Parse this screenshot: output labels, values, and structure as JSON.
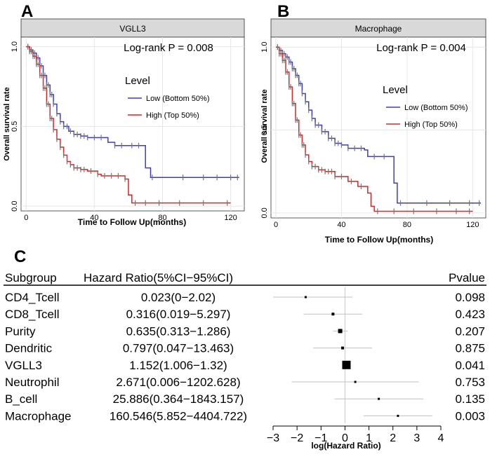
{
  "panels": {
    "a_letter": "A",
    "b_letter": "B",
    "c_letter": "C"
  },
  "chart_data": [
    {
      "type": "line",
      "panel": "A",
      "title": "VGLL3",
      "annotation": "Log-rank P = 0.008",
      "xlabel": "Time to Follow Up(months)",
      "ylabel": "Overall survival rate",
      "xlim": [
        -3,
        128
      ],
      "ylim": [
        -0.03,
        1.06
      ],
      "xticks": [
        "0",
        "40",
        "80",
        "120"
      ],
      "xtick_values": [
        0,
        40,
        80,
        120
      ],
      "yticks": [
        "0.0",
        "0.5",
        "1.0"
      ],
      "ytick_values": [
        0,
        0.5,
        1.0
      ],
      "grid": true,
      "legend": {
        "title": "Level",
        "position": "right",
        "entries": [
          "Low (Bottom 50%)",
          "High (Top 50%)"
        ]
      },
      "series": [
        {
          "name": "Low (Bottom 50%)",
          "color": "#3c3cc8",
          "steps": [
            [
              0,
              1.0
            ],
            [
              2,
              0.98
            ],
            [
              4,
              0.96
            ],
            [
              6,
              0.93
            ],
            [
              8,
              0.88
            ],
            [
              10,
              0.82
            ],
            [
              12,
              0.76
            ],
            [
              14,
              0.7
            ],
            [
              16,
              0.64
            ],
            [
              18,
              0.58
            ],
            [
              20,
              0.53
            ],
            [
              22,
              0.5
            ],
            [
              25,
              0.47
            ],
            [
              28,
              0.45
            ],
            [
              32,
              0.44
            ],
            [
              36,
              0.43
            ],
            [
              44,
              0.43
            ],
            [
              48,
              0.4
            ],
            [
              52,
              0.38
            ],
            [
              66,
              0.38
            ],
            [
              70,
              0.24
            ],
            [
              73,
              0.18
            ],
            [
              125,
              0.18
            ]
          ],
          "censor": [
            1,
            2,
            3,
            4,
            5,
            6,
            7,
            8,
            9,
            10,
            11,
            12,
            13,
            14,
            15,
            16,
            18,
            20,
            22,
            24,
            26,
            28,
            30,
            32,
            34,
            36,
            40,
            44,
            52,
            56,
            62,
            66,
            74,
            92,
            104,
            112,
            120,
            124
          ]
        },
        {
          "name": "High (Top 50%)",
          "color": "#d22828",
          "steps": [
            [
              0,
              1.0
            ],
            [
              2,
              0.97
            ],
            [
              4,
              0.94
            ],
            [
              6,
              0.89
            ],
            [
              8,
              0.82
            ],
            [
              10,
              0.74
            ],
            [
              12,
              0.64
            ],
            [
              14,
              0.55
            ],
            [
              16,
              0.48
            ],
            [
              18,
              0.42
            ],
            [
              20,
              0.37
            ],
            [
              22,
              0.32
            ],
            [
              24,
              0.28
            ],
            [
              26,
              0.26
            ],
            [
              28,
              0.24
            ],
            [
              32,
              0.23
            ],
            [
              36,
              0.22
            ],
            [
              42,
              0.2
            ],
            [
              44,
              0.19
            ],
            [
              58,
              0.17
            ],
            [
              60,
              0.07
            ],
            [
              62,
              0.02
            ],
            [
              120,
              0.02
            ]
          ],
          "censor": [
            1,
            2,
            3,
            4,
            5,
            6,
            7,
            8,
            9,
            10,
            11,
            12,
            13,
            14,
            15,
            16,
            18,
            20,
            22,
            24,
            26,
            28,
            30,
            32,
            34,
            38,
            42,
            46,
            50,
            54,
            58,
            64,
            70,
            78,
            90,
            104,
            118
          ]
        }
      ]
    },
    {
      "type": "line",
      "panel": "B",
      "title": "Macrophage",
      "annotation": "Log-rank P = 0.004",
      "xlabel": "Time to Follow Up(months)",
      "ylabel": "Overall survival rate",
      "xlim": [
        -3,
        128
      ],
      "ylim": [
        -0.03,
        1.06
      ],
      "xticks": [
        "0",
        "40",
        "80",
        "120"
      ],
      "xtick_values": [
        0,
        40,
        80,
        120
      ],
      "yticks": [
        "0.0",
        "0.5",
        "1.0"
      ],
      "ytick_values": [
        0,
        0.5,
        1.0
      ],
      "grid": true,
      "legend": {
        "title": "Level",
        "position": "right",
        "entries": [
          "Low (Bottom 50%)",
          "High (Top 50%)"
        ]
      },
      "series": [
        {
          "name": "Low (Bottom 50%)",
          "color": "#3c3cc8",
          "steps": [
            [
              0,
              1.0
            ],
            [
              2,
              0.98
            ],
            [
              4,
              0.96
            ],
            [
              6,
              0.94
            ],
            [
              8,
              0.91
            ],
            [
              10,
              0.87
            ],
            [
              12,
              0.83
            ],
            [
              14,
              0.78
            ],
            [
              16,
              0.72
            ],
            [
              18,
              0.67
            ],
            [
              20,
              0.62
            ],
            [
              22,
              0.57
            ],
            [
              24,
              0.53
            ],
            [
              28,
              0.49
            ],
            [
              32,
              0.45
            ],
            [
              36,
              0.42
            ],
            [
              40,
              0.41
            ],
            [
              44,
              0.39
            ],
            [
              54,
              0.38
            ],
            [
              56,
              0.34
            ],
            [
              70,
              0.34
            ],
            [
              72,
              0.18
            ],
            [
              74,
              0.06
            ],
            [
              125,
              0.06
            ]
          ],
          "censor": [
            1,
            2,
            3,
            4,
            5,
            6,
            7,
            8,
            9,
            10,
            11,
            12,
            13,
            14,
            15,
            16,
            18,
            20,
            22,
            24,
            26,
            28,
            30,
            32,
            34,
            36,
            38,
            40,
            44,
            48,
            52,
            60,
            66,
            76,
            92,
            106,
            118,
            124
          ]
        },
        {
          "name": "High (Top 50%)",
          "color": "#d22828",
          "steps": [
            [
              0,
              1.0
            ],
            [
              2,
              0.96
            ],
            [
              4,
              0.92
            ],
            [
              6,
              0.85
            ],
            [
              8,
              0.76
            ],
            [
              10,
              0.66
            ],
            [
              12,
              0.56
            ],
            [
              14,
              0.47
            ],
            [
              16,
              0.41
            ],
            [
              18,
              0.35
            ],
            [
              20,
              0.31
            ],
            [
              22,
              0.28
            ],
            [
              26,
              0.26
            ],
            [
              30,
              0.25
            ],
            [
              36,
              0.22
            ],
            [
              44,
              0.19
            ],
            [
              50,
              0.16
            ],
            [
              56,
              0.12
            ],
            [
              58,
              0.04
            ],
            [
              60,
              0.01
            ],
            [
              120,
              0.01
            ]
          ],
          "censor": [
            1,
            2,
            3,
            4,
            5,
            6,
            7,
            8,
            9,
            10,
            11,
            12,
            13,
            14,
            15,
            16,
            17,
            18,
            20,
            22,
            24,
            26,
            28,
            30,
            32,
            34,
            36,
            40,
            46,
            52,
            62,
            72,
            84,
            98,
            110,
            118
          ]
        }
      ]
    },
    {
      "type": "scatter",
      "panel": "C",
      "title": "",
      "xlabel": "log(Hazard Ratio)",
      "ylabel": "",
      "xlim": [
        -3,
        4
      ],
      "xticks": [
        "−3",
        "−2",
        "−1",
        "0",
        "1",
        "2",
        "3",
        "4"
      ],
      "xtick_values": [
        -3,
        -2,
        -1,
        0,
        1,
        2,
        3,
        4
      ],
      "grid": false,
      "header": {
        "subgroup": "Subgroup",
        "hr": "Hazard Ratio(5%CI−95%CI)",
        "pvalue": "Pvalue"
      },
      "rows": [
        {
          "subgroup": "CD4_Tcell",
          "hr_text": "0.023(0−2.02)",
          "pvalue": "0.098",
          "log_hr": -1.64,
          "ci": [
            -3.0,
            0.31
          ],
          "size": 3
        },
        {
          "subgroup": "CD8_Tcell",
          "hr_text": "0.316(0.019−5.297)",
          "pvalue": "0.423",
          "log_hr": -0.5,
          "ci": [
            -1.72,
            0.72
          ],
          "size": 4
        },
        {
          "subgroup": "Purity",
          "hr_text": "0.635(0.313−1.286)",
          "pvalue": "0.207",
          "log_hr": -0.2,
          "ci": [
            -0.5,
            0.11
          ],
          "size": 6
        },
        {
          "subgroup": "Dendritic",
          "hr_text": "0.797(0.047−13.463)",
          "pvalue": "0.875",
          "log_hr": -0.1,
          "ci": [
            -1.33,
            1.13
          ],
          "size": 4
        },
        {
          "subgroup": "VGLL3",
          "hr_text": "1.152(1.006−1.32)",
          "pvalue": "0.041",
          "log_hr": 0.06,
          "ci": [
            0.003,
            0.12
          ],
          "size": 12
        },
        {
          "subgroup": "Neutrophil",
          "hr_text": "2.671(0.006−1202.628)",
          "pvalue": "0.753",
          "log_hr": 0.43,
          "ci": [
            -2.22,
            3.08
          ],
          "size": 3
        },
        {
          "subgroup": "B_cell",
          "hr_text": "25.886(0.364−1843.157)",
          "pvalue": "0.135",
          "log_hr": 1.41,
          "ci": [
            -0.44,
            3.27
          ],
          "size": 3
        },
        {
          "subgroup": "Macrophage",
          "hr_text": "160.546(5.852−4404.722)",
          "pvalue": "0.003",
          "log_hr": 2.21,
          "ci": [
            0.77,
            3.64
          ],
          "size": 3
        }
      ]
    }
  ]
}
